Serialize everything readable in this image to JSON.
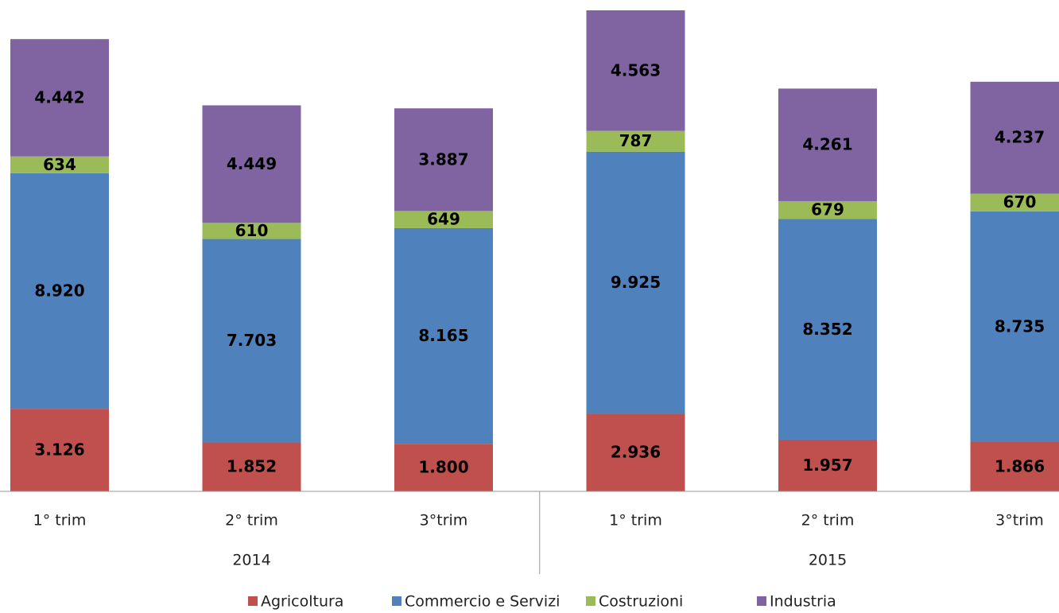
{
  "chart_data": {
    "type": "stacked-bar",
    "categories": [
      "1° trim",
      "2° trim",
      "3°trim",
      "1° trim",
      "2° trim",
      "3°trim"
    ],
    "x_groups": [
      "2014",
      "2015"
    ],
    "series": [
      {
        "name": "Agricoltura",
        "color": "#c0504d",
        "values": [
          3126,
          1852,
          1800,
          2936,
          1957,
          1866
        ],
        "value_labels": [
          "3.126",
          "1.852",
          "1.800",
          "2.936",
          "1.957",
          "1.866"
        ]
      },
      {
        "name": "Commercio e Servizi",
        "color": "#4f81bd",
        "values": [
          8920,
          7703,
          8165,
          9925,
          8352,
          8735
        ],
        "value_labels": [
          "8.920",
          "7.703",
          "8.165",
          "9.925",
          "8.352",
          "8.735"
        ]
      },
      {
        "name": "Costruzioni",
        "color": "#9bbb59",
        "values": [
          634,
          610,
          649,
          787,
          679,
          670
        ],
        "value_labels": [
          "634",
          "610",
          "649",
          "787",
          "679",
          "670"
        ]
      },
      {
        "name": "Industria",
        "color": "#8064a2",
        "values": [
          4442,
          4449,
          3887,
          4563,
          4261,
          4237
        ],
        "value_labels": [
          "4.442",
          "4.449",
          "3.887",
          "4.563",
          "4.261",
          "4.237"
        ]
      }
    ],
    "legend": "bottom"
  }
}
